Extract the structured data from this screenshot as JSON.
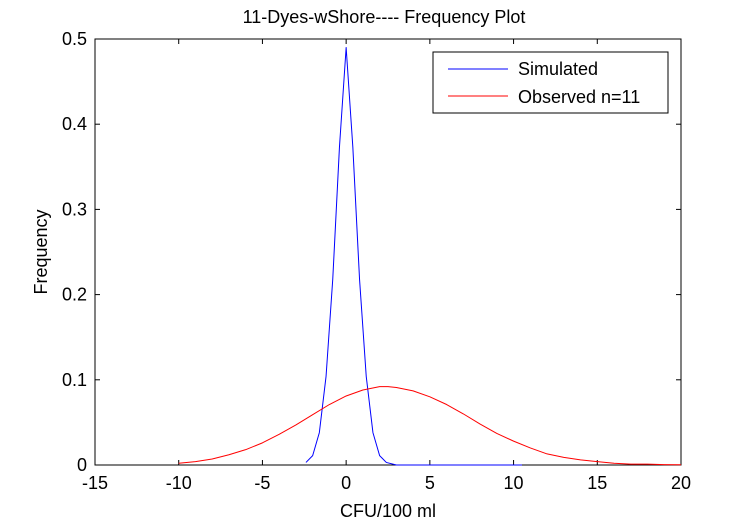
{
  "chart_data": {
    "type": "line",
    "title": "11-Dyes-wShore---- Frequency Plot",
    "xlabel": "CFU/100 ml",
    "ylabel": "Frequency",
    "xlim": [
      -15,
      20
    ],
    "ylim": [
      0,
      0.5
    ],
    "x_ticks": [
      "-15",
      "-10",
      "-5",
      "0",
      "5",
      "10",
      "15",
      "20"
    ],
    "y_ticks": [
      "0",
      "0.1",
      "0.2",
      "0.3",
      "0.4",
      "0.5"
    ],
    "grid": false,
    "legend_position": "top-right",
    "series": [
      {
        "name": "Simulated",
        "color": "#0000ff",
        "x": [
          -2.4,
          -2.0,
          -1.6,
          -1.2,
          -0.8,
          -0.4,
          0.0,
          0.4,
          0.8,
          1.2,
          1.6,
          2.0,
          2.4,
          3.0,
          4.0,
          6.0,
          8.0,
          10.5
        ],
        "y": [
          0.003,
          0.011,
          0.038,
          0.104,
          0.218,
          0.373,
          0.49,
          0.373,
          0.218,
          0.104,
          0.038,
          0.011,
          0.003,
          0.0,
          0.0,
          0.0,
          0.0,
          0.0
        ]
      },
      {
        "name": "Observed n=11",
        "color": "#ff0000",
        "x": [
          -10.0,
          -9.0,
          -8.0,
          -7.0,
          -6.0,
          -5.0,
          -4.0,
          -3.0,
          -2.0,
          -1.0,
          0.0,
          1.0,
          2.0,
          2.5,
          3.0,
          4.0,
          5.0,
          6.0,
          7.0,
          8.0,
          9.0,
          10.0,
          11.0,
          12.0,
          13.0,
          14.0,
          15.0,
          16.0,
          17.0,
          18.0,
          19.0,
          20.0
        ],
        "y": [
          0.002,
          0.004,
          0.007,
          0.012,
          0.018,
          0.026,
          0.036,
          0.047,
          0.059,
          0.071,
          0.081,
          0.088,
          0.092,
          0.092,
          0.091,
          0.087,
          0.08,
          0.071,
          0.06,
          0.048,
          0.037,
          0.028,
          0.02,
          0.013,
          0.009,
          0.006,
          0.004,
          0.002,
          0.001,
          0.001,
          0.0005,
          0.0003
        ]
      }
    ]
  }
}
